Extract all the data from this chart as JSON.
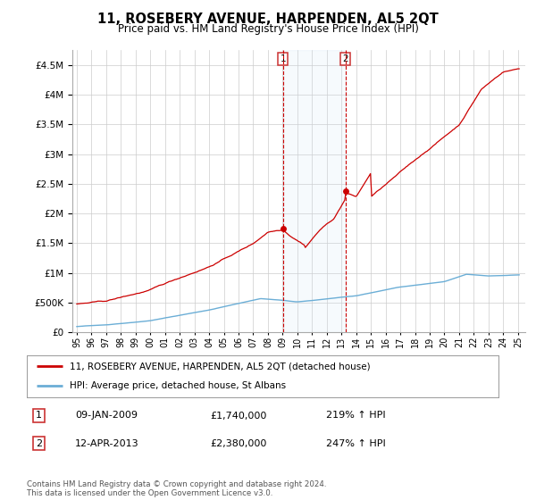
{
  "title": "11, ROSEBERY AVENUE, HARPENDEN, AL5 2QT",
  "subtitle": "Price paid vs. HM Land Registry's House Price Index (HPI)",
  "legend_line1": "11, ROSEBERY AVENUE, HARPENDEN, AL5 2QT (detached house)",
  "legend_line2": "HPI: Average price, detached house, St Albans",
  "transaction1_date": "09-JAN-2009",
  "transaction1_price": "£1,740,000",
  "transaction1_hpi": "219% ↑ HPI",
  "transaction2_date": "12-APR-2013",
  "transaction2_price": "£2,380,000",
  "transaction2_hpi": "247% ↑ HPI",
  "footer": "Contains HM Land Registry data © Crown copyright and database right 2024.\nThis data is licensed under the Open Government Licence v3.0.",
  "hpi_color": "#6baed6",
  "price_color": "#cc0000",
  "vline_color": "#cc0000",
  "shade_color": "#d0e4f5",
  "ylim": [
    0,
    4750000
  ],
  "yticks": [
    0,
    500000,
    1000000,
    1500000,
    2000000,
    2500000,
    3000000,
    3500000,
    4000000,
    4500000
  ],
  "xlim_start": 1994.7,
  "xlim_end": 2025.5,
  "t1_x": 2009.03,
  "t1_y": 1740000,
  "t2_x": 2013.28,
  "t2_y": 2380000,
  "background_color": "#ffffff",
  "grid_color": "#cccccc"
}
